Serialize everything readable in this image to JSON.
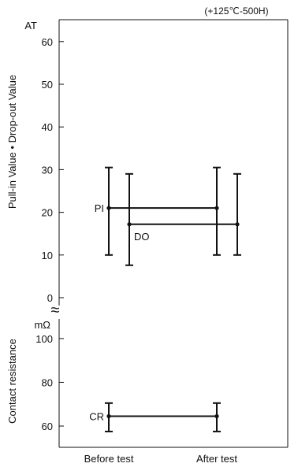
{
  "chart_data": {
    "type": "errorbar",
    "condition": "(+125℃-500H)",
    "categories": [
      "Before test",
      "After test"
    ],
    "panels": [
      {
        "name": "pull-in-drop-out",
        "ylabel": "Pull-in Value • Drop-out Value",
        "unit": "AT",
        "ylim": [
          0,
          65
        ],
        "ticks": [
          0,
          10,
          20,
          30,
          40,
          50,
          60
        ],
        "series": [
          {
            "name": "PI",
            "mean": [
              21,
              21
            ],
            "min": [
              10,
              10
            ],
            "max": [
              30.5,
              30.5
            ]
          },
          {
            "name": "DO",
            "mean": [
              17.2,
              17.2
            ],
            "min": [
              7.6,
              10
            ],
            "max": [
              29,
              29
            ]
          }
        ]
      },
      {
        "name": "contact-resistance",
        "ylabel": "Contact resistance",
        "unit": "mΩ",
        "ylim": [
          55,
          110
        ],
        "ticks": [
          60,
          80,
          100
        ],
        "series": [
          {
            "name": "CR",
            "mean": [
              64.5,
              64.5
            ],
            "min": [
              57.5,
              57.5
            ],
            "max": [
              70.5,
              70.5
            ]
          }
        ]
      }
    ],
    "axis_break_symbol": "≈"
  }
}
